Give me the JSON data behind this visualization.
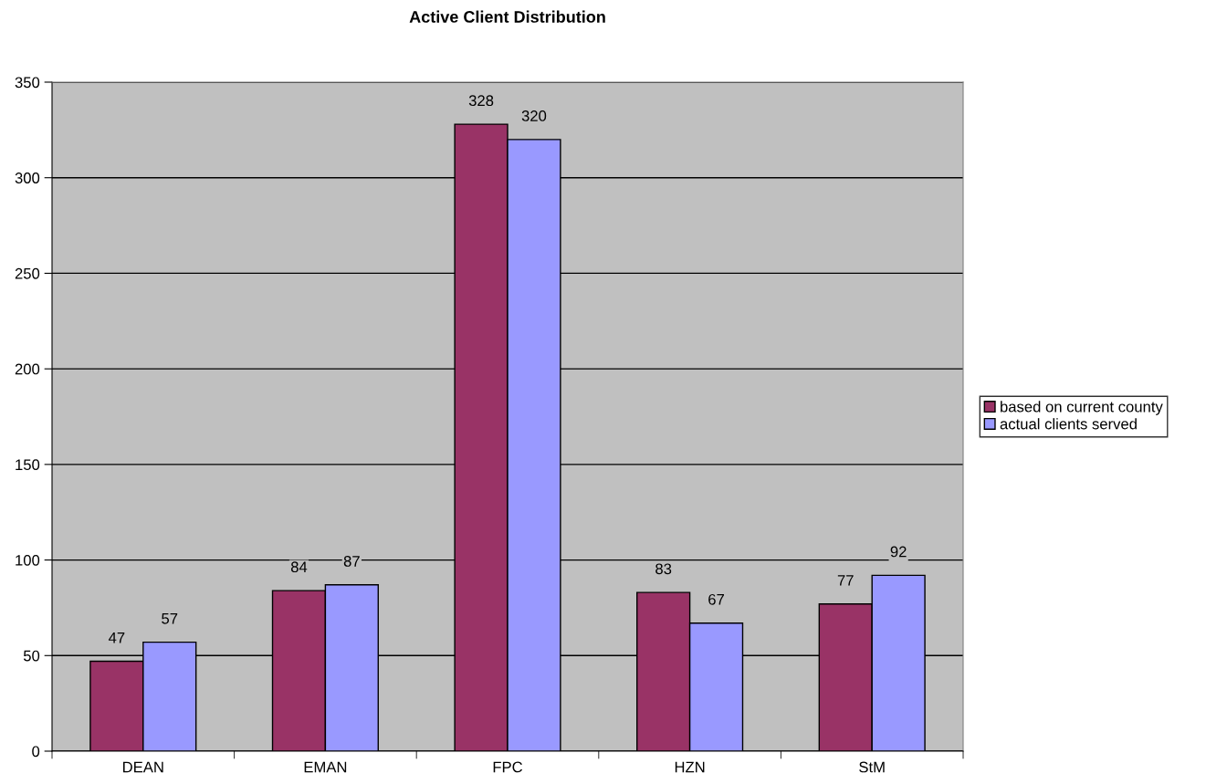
{
  "chart_data": {
    "type": "bar",
    "title": "Active Client Distribution",
    "categories": [
      "DEAN",
      "EMAN",
      "FPC",
      "HZN",
      "StM"
    ],
    "series": [
      {
        "name": "based on current county",
        "color": "#993366",
        "values": [
          47,
          84,
          328,
          83,
          77
        ]
      },
      {
        "name": "actual clients served",
        "color": "#9999ff",
        "values": [
          57,
          87,
          320,
          67,
          92
        ]
      }
    ],
    "ylim": [
      0,
      350
    ],
    "yticks": [
      0,
      50,
      100,
      150,
      200,
      250,
      300,
      350
    ],
    "grid": "y",
    "legend": "right",
    "data_labels": true
  }
}
